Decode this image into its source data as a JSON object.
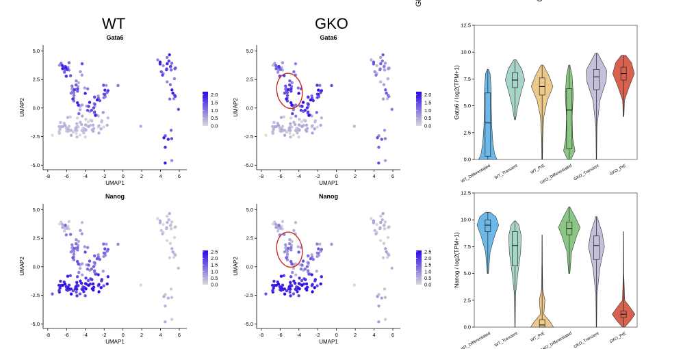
{
  "headers": {
    "wt": "WT",
    "gko": "GKO"
  },
  "cropped_labels": {
    "rotated_left": "GKO_",
    "top_right": "G"
  },
  "umap": {
    "xlabel": "UMAP1",
    "ylabel": "UMAP2",
    "xticks": [
      -8,
      -6,
      -4,
      -2,
      0,
      2,
      4,
      6
    ],
    "yticks": [
      -5.0,
      -2.5,
      0.0,
      2.5,
      5.0
    ],
    "xlim": [
      -8.5,
      6.8
    ],
    "ylim": [
      -5.4,
      5.5
    ],
    "low_color": "#d9d9d9",
    "high_color": "#2a06e6",
    "highlight_color": "#cc2a22"
  },
  "chart_data": [
    {
      "type": "scatter",
      "id": "wt_gata6",
      "title": "Gata6",
      "condition": "WT",
      "gene": "Gata6",
      "legend_ticks": [
        "2.0",
        "1.5",
        "1.0",
        "0.5",
        "0.0"
      ],
      "legend_range": [
        0,
        2.2
      ],
      "highlight": null
    },
    {
      "type": "scatter",
      "id": "gko_gata6",
      "title": "Gata6",
      "condition": "GKO",
      "gene": "Gata6",
      "legend_ticks": [
        "2.0",
        "1.5",
        "1.0",
        "0.5",
        "0.0"
      ],
      "legend_range": [
        0,
        2.2
      ],
      "highlight": {
        "cx": -5.0,
        "cy": 1.5,
        "rx": 1.35,
        "ry": 1.55
      }
    },
    {
      "type": "scatter",
      "id": "wt_nanog",
      "title": "Nanog",
      "condition": "WT",
      "gene": "Nanog",
      "legend_ticks": [
        "2.5",
        "2.0",
        "1.5",
        "1.0",
        "0.5",
        "0.0"
      ],
      "legend_range": [
        0,
        2.6
      ],
      "highlight": null
    },
    {
      "type": "scatter",
      "id": "gko_nanog",
      "title": "Nanog",
      "condition": "GKO",
      "gene": "Nanog",
      "legend_ticks": [
        "2.5",
        "2.0",
        "1.5",
        "1.0",
        "0.5",
        "0.0"
      ],
      "legend_range": [
        0,
        2.6
      ],
      "highlight": {
        "cx": -5.0,
        "cy": 1.5,
        "rx": 1.35,
        "ry": 1.55
      }
    },
    {
      "type": "violin",
      "id": "violin_gata6",
      "ylabel": "Gata6 / log2(TPM+1)",
      "ylim": [
        0,
        12.5
      ],
      "yticks": [
        0.0,
        2.5,
        5.0,
        7.5,
        10.0,
        12.5
      ],
      "categories": [
        "WT_Differentiated",
        "WT_Transient",
        "WT_PrE",
        "GKO_Differentiated",
        "GKO_Transient",
        "GKO_PrE"
      ],
      "colors": [
        "#6cb8e9",
        "#a6d4c8",
        "#eec98d",
        "#8bc784",
        "#c6bfdc",
        "#d9614f"
      ],
      "series": [
        {
          "min": 0.0,
          "q1": 0.3,
          "median": 3.4,
          "q3": 6.2,
          "max": 8.4,
          "shape": [
            [
              0,
              0.8
            ],
            [
              0.5,
              0.6
            ],
            [
              1.5,
              0.45
            ],
            [
              3,
              0.35
            ],
            [
              5,
              0.3
            ],
            [
              6.5,
              0.3
            ],
            [
              8,
              0.2
            ],
            [
              8.4,
              0.05
            ]
          ]
        },
        {
          "min": 3.7,
          "q1": 6.7,
          "median": 7.4,
          "q3": 8.1,
          "max": 9.3,
          "shape": [
            [
              3.7,
              0.05
            ],
            [
              5,
              0.25
            ],
            [
              6.5,
              0.6
            ],
            [
              7.4,
              0.85
            ],
            [
              8.4,
              0.6
            ],
            [
              9.3,
              0.1
            ]
          ]
        },
        {
          "min": 0.0,
          "q1": 6.0,
          "median": 6.8,
          "q3": 7.6,
          "max": 8.8,
          "shape": [
            [
              0,
              0.03
            ],
            [
              2,
              0.05
            ],
            [
              4,
              0.15
            ],
            [
              5.5,
              0.45
            ],
            [
              6.8,
              0.95
            ],
            [
              7.8,
              0.6
            ],
            [
              8.8,
              0.1
            ]
          ]
        },
        {
          "min": 0.0,
          "q1": 1.0,
          "median": 4.6,
          "q3": 6.6,
          "max": 8.8,
          "shape": [
            [
              0,
              0.15
            ],
            [
              0.8,
              0.5
            ],
            [
              2,
              0.3
            ],
            [
              4,
              0.25
            ],
            [
              6,
              0.35
            ],
            [
              7.8,
              0.25
            ],
            [
              8.8,
              0.05
            ]
          ]
        },
        {
          "min": 0.0,
          "q1": 6.5,
          "median": 7.7,
          "q3": 8.4,
          "max": 9.9,
          "shape": [
            [
              0,
              0.02
            ],
            [
              3,
              0.05
            ],
            [
              5.5,
              0.3
            ],
            [
              7.3,
              0.85
            ],
            [
              8.3,
              0.9
            ],
            [
              9.3,
              0.4
            ],
            [
              9.9,
              0.1
            ]
          ]
        },
        {
          "min": 4.0,
          "q1": 7.4,
          "median": 8.0,
          "q3": 8.6,
          "max": 9.7,
          "shape": [
            [
              4,
              0.03
            ],
            [
              5.5,
              0.08
            ],
            [
              6.8,
              0.5
            ],
            [
              8,
              0.95
            ],
            [
              9,
              0.7
            ],
            [
              9.7,
              0.2
            ]
          ]
        }
      ]
    },
    {
      "type": "violin",
      "id": "violin_nanog",
      "ylabel": "Nanog / log2(TPM+1)",
      "ylim": [
        0,
        12.5
      ],
      "yticks": [
        0.0,
        2.5,
        5.0,
        7.5,
        10.0,
        12.5
      ],
      "categories": [
        "WT_Differentiated",
        "WT_Transient",
        "WT_PrE",
        "GKO_Differentiated",
        "GKO_Transient",
        "GKO_PrE"
      ],
      "colors": [
        "#6cb8e9",
        "#a6d4c8",
        "#eec98d",
        "#8bc784",
        "#c6bfdc",
        "#d9614f"
      ],
      "series": [
        {
          "min": 5.0,
          "q1": 8.9,
          "median": 9.5,
          "q3": 10.0,
          "max": 10.7,
          "shape": [
            [
              5,
              0.05
            ],
            [
              7,
              0.2
            ],
            [
              8.5,
              0.6
            ],
            [
              9.5,
              0.95
            ],
            [
              10.3,
              0.7
            ],
            [
              10.7,
              0.2
            ]
          ]
        },
        {
          "min": 0.0,
          "q1": 5.7,
          "median": 7.6,
          "q3": 8.9,
          "max": 9.9,
          "shape": [
            [
              0,
              0.02
            ],
            [
              3,
              0.05
            ],
            [
              5,
              0.25
            ],
            [
              7,
              0.5
            ],
            [
              8.5,
              0.55
            ],
            [
              9.5,
              0.35
            ],
            [
              9.9,
              0.05
            ]
          ]
        },
        {
          "min": 0.0,
          "q1": 0.0,
          "median": 0.2,
          "q3": 0.7,
          "max": 8.6,
          "shape": [
            [
              0,
              1.0
            ],
            [
              0.5,
              0.7
            ],
            [
              1.2,
              0.15
            ],
            [
              2.5,
              0.25
            ],
            [
              3.5,
              0.05
            ],
            [
              6,
              0.02
            ],
            [
              8.6,
              0.01
            ]
          ]
        },
        {
          "min": 5.0,
          "q1": 8.6,
          "median": 9.2,
          "q3": 9.8,
          "max": 11.2,
          "shape": [
            [
              5,
              0.05
            ],
            [
              7,
              0.2
            ],
            [
              8.5,
              0.65
            ],
            [
              9.3,
              0.95
            ],
            [
              10.3,
              0.5
            ],
            [
              11.2,
              0.05
            ]
          ]
        },
        {
          "min": 0.0,
          "q1": 6.3,
          "median": 7.6,
          "q3": 8.5,
          "max": 10.3,
          "shape": [
            [
              0,
              0.02
            ],
            [
              3,
              0.05
            ],
            [
              5.5,
              0.3
            ],
            [
              7.5,
              0.7
            ],
            [
              8.8,
              0.5
            ],
            [
              10.3,
              0.05
            ]
          ]
        },
        {
          "min": 0.0,
          "q1": 0.9,
          "median": 1.2,
          "q3": 1.5,
          "max": 8.9,
          "shape": [
            [
              0,
              0.1
            ],
            [
              0.6,
              0.6
            ],
            [
              1.2,
              1.0
            ],
            [
              1.8,
              0.6
            ],
            [
              2.5,
              0.1
            ],
            [
              5,
              0.02
            ],
            [
              8.9,
              0.01
            ]
          ]
        }
      ]
    }
  ]
}
